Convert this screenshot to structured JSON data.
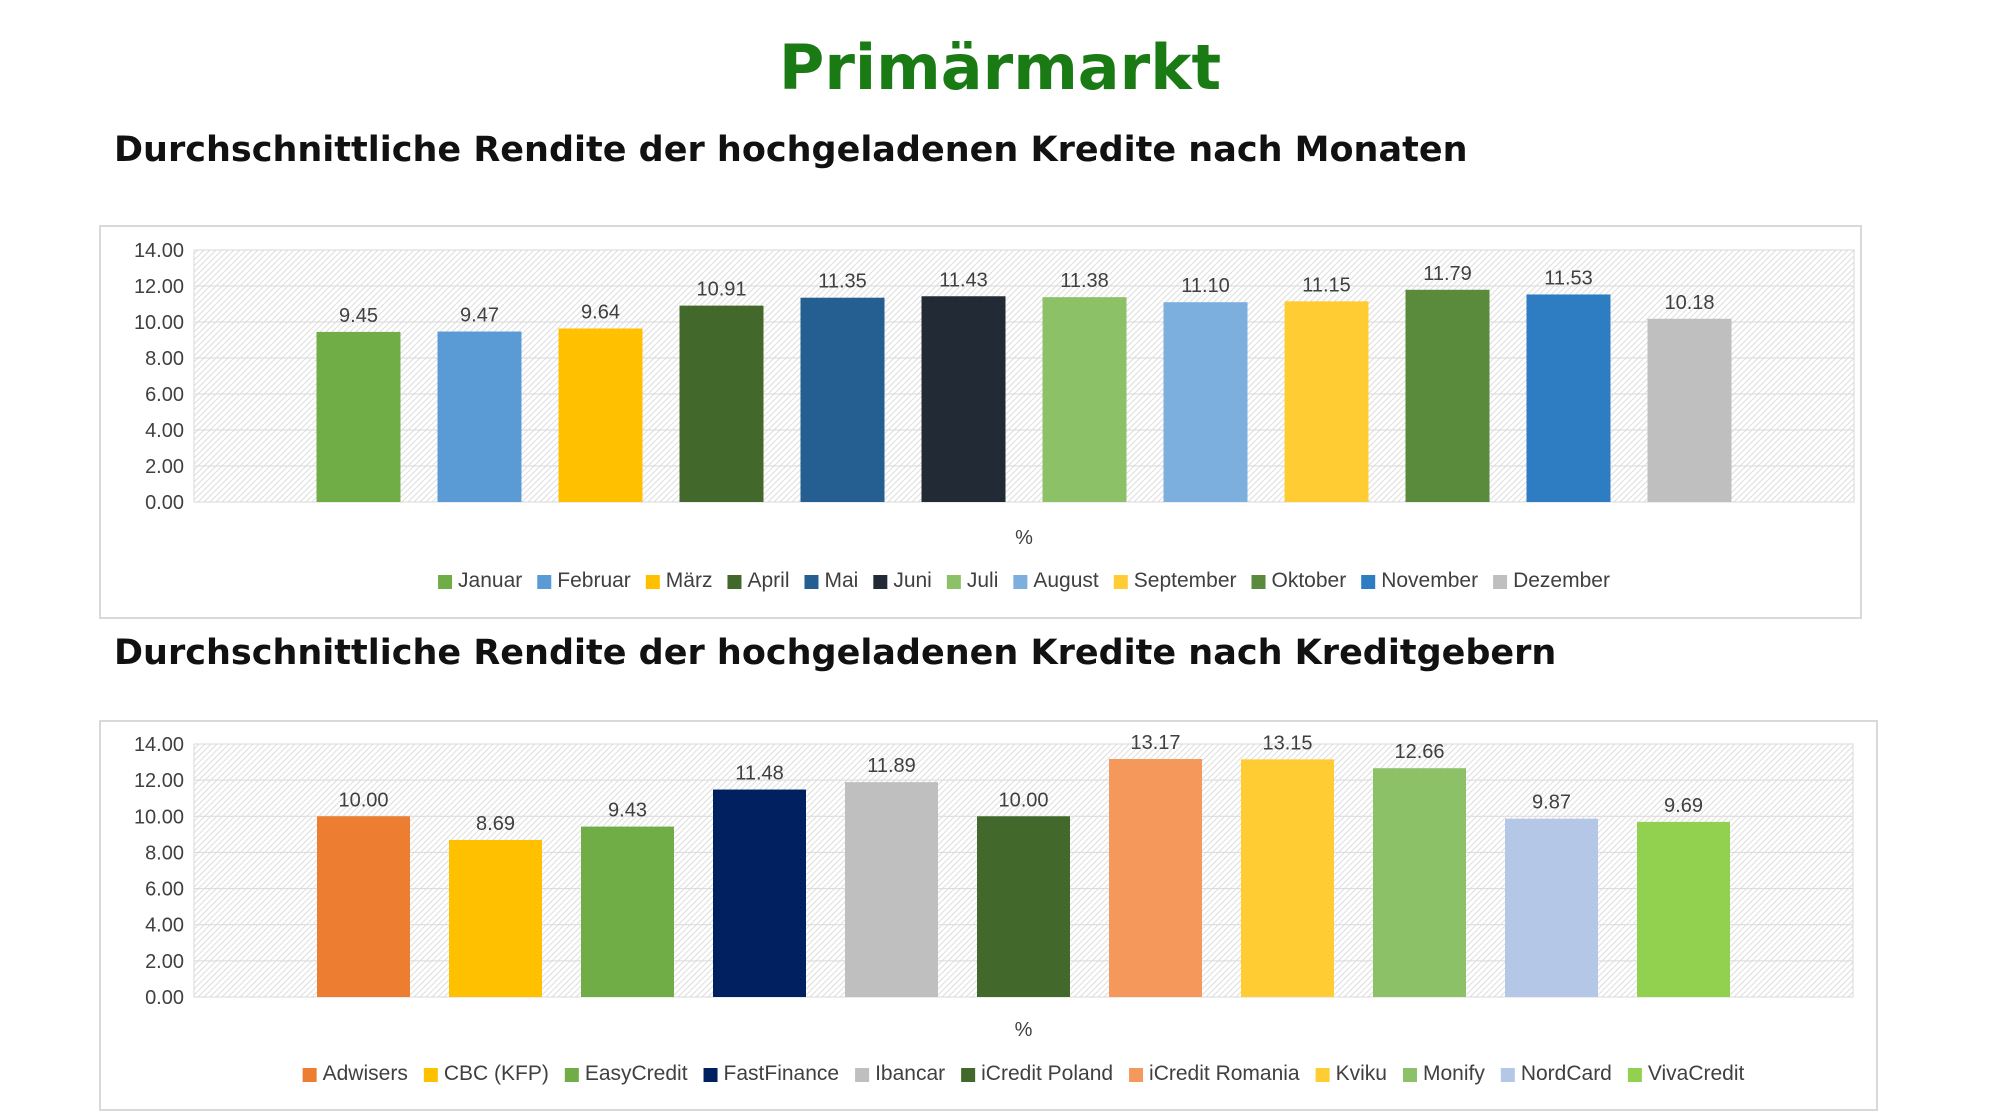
{
  "page": {
    "title": "Primärmarkt"
  },
  "chart_data": [
    {
      "type": "bar",
      "title": "Durchschnittliche Rendite der hochgeladenen Kredite nach Monaten",
      "xlabel": "%",
      "ylabel": "",
      "ylim": [
        0,
        14
      ],
      "yticks": [
        "0.00",
        "2.00",
        "4.00",
        "6.00",
        "8.00",
        "10.00",
        "12.00",
        "14.00"
      ],
      "grid": true,
      "legend_position": "bottom",
      "series": [
        {
          "name": "Januar",
          "value": 9.45,
          "label": "9.45",
          "color": "#70ad47"
        },
        {
          "name": "Februar",
          "value": 9.47,
          "label": "9.47",
          "color": "#5b9bd5"
        },
        {
          "name": "März",
          "value": 9.64,
          "label": "9.64",
          "color": "#ffc000"
        },
        {
          "name": "April",
          "value": 10.91,
          "label": "10.91",
          "color": "#43682b"
        },
        {
          "name": "Mai",
          "value": 11.35,
          "label": "11.35",
          "color": "#255e91"
        },
        {
          "name": "Juni",
          "value": 11.43,
          "label": "11.43",
          "color": "#222a35"
        },
        {
          "name": "Juli",
          "value": 11.38,
          "label": "11.38",
          "color": "#8cc168"
        },
        {
          "name": "August",
          "value": 11.1,
          "label": "11.10",
          "color": "#7cafdd"
        },
        {
          "name": "September",
          "value": 11.15,
          "label": "11.15",
          "color": "#ffcd33"
        },
        {
          "name": "Oktober",
          "value": 11.79,
          "label": "11.79",
          "color": "#5a8a3c"
        },
        {
          "name": "November",
          "value": 11.53,
          "label": "11.53",
          "color": "#2e7cc2"
        },
        {
          "name": "Dezember",
          "value": 10.18,
          "label": "10.18",
          "color": "#bfbfbf"
        }
      ]
    },
    {
      "type": "bar",
      "title": "Durchschnittliche Rendite der hochgeladenen Kredite nach Kreditgebern",
      "xlabel": "%",
      "ylabel": "",
      "ylim": [
        0,
        14
      ],
      "yticks": [
        "0.00",
        "2.00",
        "4.00",
        "6.00",
        "8.00",
        "10.00",
        "12.00",
        "14.00"
      ],
      "grid": true,
      "legend_position": "bottom",
      "series": [
        {
          "name": "Adwisers",
          "value": 10.0,
          "label": "10.00",
          "color": "#ed7d31"
        },
        {
          "name": "CBC (KFP)",
          "value": 8.69,
          "label": "8.69",
          "color": "#ffc000"
        },
        {
          "name": "EasyCredit",
          "value": 9.43,
          "label": "9.43",
          "color": "#70ad47"
        },
        {
          "name": "FastFinance",
          "value": 11.48,
          "label": "11.48",
          "color": "#002060"
        },
        {
          "name": "Ibancar",
          "value": 11.89,
          "label": "11.89",
          "color": "#bfbfbf"
        },
        {
          "name": "iCredit Poland",
          "value": 10.0,
          "label": "10.00",
          "color": "#43682b"
        },
        {
          "name": "iCredit Romania",
          "value": 13.17,
          "label": "13.17",
          "color": "#f4995b"
        },
        {
          "name": "Kviku",
          "value": 13.15,
          "label": "13.15",
          "color": "#ffcd33"
        },
        {
          "name": "Monify",
          "value": 12.66,
          "label": "12.66",
          "color": "#8cc168"
        },
        {
          "name": "NordCard",
          "value": 9.87,
          "label": "9.87",
          "color": "#b4c7e7"
        },
        {
          "name": "VivaCredit",
          "value": 9.69,
          "label": "9.69",
          "color": "#92d050"
        }
      ]
    }
  ]
}
